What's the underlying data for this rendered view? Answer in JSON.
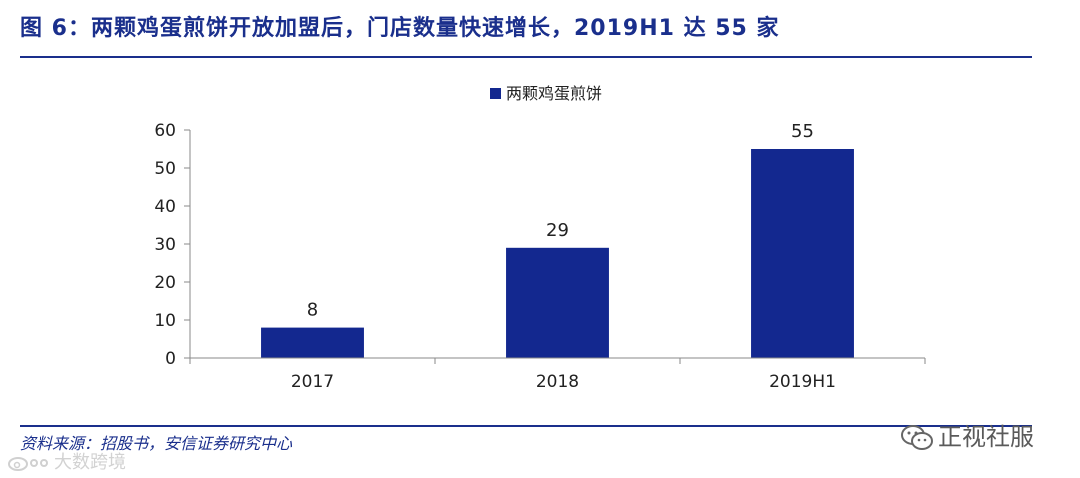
{
  "figure": {
    "title": "图 6：两颗鸡蛋煎饼开放加盟后，门店数量快速增长，2019H1 达 55 家",
    "source": "资料来源：招股书，安信证券研究中心"
  },
  "watermarks": {
    "right_text": "正视社服",
    "left_text": "大数跨境",
    "right_icon": "wechat-icon",
    "left_icon": "weibo-icon"
  },
  "colors": {
    "accent": "#1a2f8c",
    "bar": "#13288f"
  },
  "chart_data": {
    "type": "bar",
    "categories": [
      "2017",
      "2018",
      "2019H1"
    ],
    "series": [
      {
        "name": "两颗鸡蛋煎饼",
        "values": [
          8,
          29,
          55
        ]
      }
    ],
    "data_labels": [
      "8",
      "29",
      "55"
    ],
    "ylim": [
      0,
      60
    ],
    "yticks": [
      0,
      10,
      20,
      30,
      40,
      50,
      60
    ],
    "xlabel": "",
    "ylabel": "",
    "grid": false,
    "legend_position": "top-center"
  }
}
